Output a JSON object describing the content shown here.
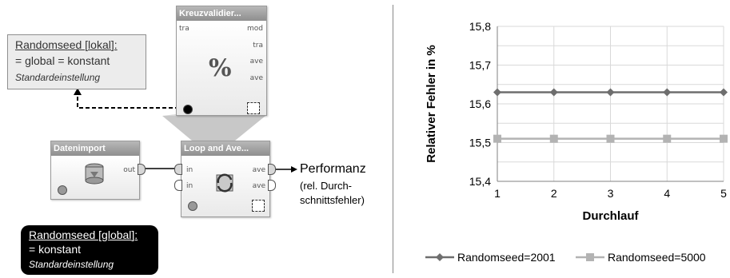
{
  "left": {
    "note_local": {
      "title": "Randomseed [lokal]:",
      "line2": "= global = konstant",
      "line3": "Standardeinstellung"
    },
    "note_global": {
      "title": "Randomseed [global]:",
      "line2": "= konstant",
      "line3": "Standardeinstellung"
    },
    "op_kreuz": {
      "title": "Kreuzvalidier...",
      "port_in": "tra",
      "ports_out": [
        "mod",
        "tra",
        "ave",
        "ave"
      ]
    },
    "op_daten": {
      "title": "Datenimport",
      "port_out": "out"
    },
    "op_loop": {
      "title": "Loop and Ave...",
      "ports_in": [
        "in",
        "in"
      ],
      "ports_out": [
        "ave",
        "ave"
      ]
    },
    "performance": {
      "title": "Performanz",
      "sub1": "(rel. Durch-",
      "sub2": "schnittsfehler)"
    }
  },
  "chart_data": {
    "type": "line",
    "xlabel": "Durchlauf",
    "ylabel": "Relativer Fehler in %",
    "x": [
      1,
      2,
      3,
      4,
      5
    ],
    "ylim": [
      15.4,
      15.8
    ],
    "yticks": [
      "15,4",
      "15,5",
      "15,6",
      "15,7",
      "15,8"
    ],
    "xticks": [
      "1",
      "2",
      "3",
      "4",
      "5"
    ],
    "grid": true,
    "legend_position": "bottom",
    "series": [
      {
        "name": "Randomseed=2001",
        "values": [
          15.63,
          15.63,
          15.63,
          15.63,
          15.63
        ],
        "color": "#6e6e6e",
        "marker": "diamond"
      },
      {
        "name": "Randomseed=5000",
        "values": [
          15.51,
          15.51,
          15.51,
          15.51,
          15.51
        ],
        "color": "#b3b3b3",
        "marker": "square"
      }
    ]
  }
}
